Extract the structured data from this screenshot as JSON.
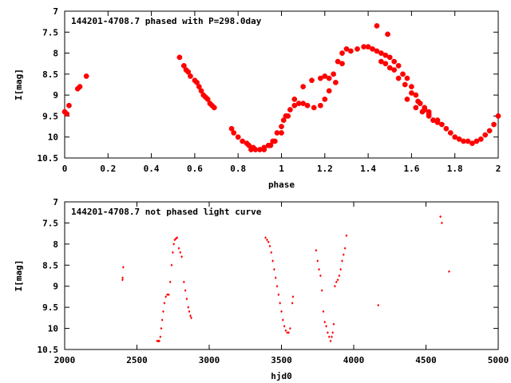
{
  "chart_data": [
    {
      "type": "scatter",
      "title": "144201-4708.7 phased with P=298.0day",
      "xlabel": "phase",
      "ylabel": "I[mag]",
      "xlim": [
        0,
        2
      ],
      "ylim": [
        10.5,
        7
      ],
      "y_inverted": true,
      "xticks": [
        "0",
        "0.2",
        "0.4",
        "0.6",
        "0.8",
        "1",
        "1.2",
        "1.4",
        "1.6",
        "1.8",
        "2"
      ],
      "yticks": [
        "7",
        "7.5",
        "8",
        "8.5",
        "9",
        "9.5",
        "10",
        "10.5"
      ],
      "grid": false,
      "marker_color": "#ff0000",
      "series": [
        {
          "x": [
            0.0,
            0.01,
            0.02,
            0.06,
            0.07,
            0.1,
            0.53,
            0.55,
            0.56,
            0.57,
            0.58,
            0.6,
            0.61,
            0.62,
            0.63,
            0.64,
            0.65,
            0.66,
            0.67,
            0.68,
            0.69,
            0.77,
            0.78,
            0.8,
            0.82,
            0.84,
            0.85,
            0.87,
            0.9,
            0.92,
            0.94,
            0.96,
            0.98,
            1.0,
            1.01,
            1.02,
            1.04,
            1.06,
            1.08,
            1.1,
            1.12,
            1.15,
            1.18,
            1.2,
            1.22,
            1.25,
            1.28,
            0.86,
            0.88,
            0.92,
            0.95,
            0.97,
            1.0,
            1.03,
            1.06,
            1.1,
            1.14,
            1.18,
            1.2,
            1.22,
            1.24,
            1.26,
            1.28,
            1.3,
            1.32,
            1.35,
            1.38,
            1.4,
            1.42,
            1.44,
            1.46,
            1.48,
            1.5,
            1.52,
            1.54,
            1.56,
            1.58,
            1.6,
            1.62,
            1.64,
            1.66,
            1.68,
            1.7,
            1.72,
            1.74,
            1.76,
            1.78,
            1.8,
            1.82,
            1.84,
            1.86,
            1.88,
            1.9,
            1.92,
            1.94,
            1.96,
            1.98,
            2.0,
            1.44,
            1.49,
            1.46,
            1.48,
            1.5,
            1.52,
            1.54,
            1.57,
            1.6,
            1.63,
            1.66,
            1.68,
            1.7,
            1.58,
            1.62,
            1.65,
            1.68,
            1.72
          ],
          "y": [
            9.4,
            9.45,
            9.25,
            8.85,
            8.8,
            8.55,
            8.1,
            8.3,
            8.4,
            8.45,
            8.55,
            8.65,
            8.7,
            8.8,
            8.9,
            9.0,
            9.05,
            9.1,
            9.2,
            9.25,
            9.3,
            9.8,
            9.9,
            10.0,
            10.1,
            10.15,
            10.2,
            10.25,
            10.3,
            10.25,
            10.2,
            10.1,
            9.9,
            9.75,
            9.6,
            9.5,
            9.35,
            9.25,
            9.2,
            9.2,
            9.25,
            9.3,
            9.25,
            9.1,
            8.9,
            8.7,
            8.25,
            10.3,
            10.3,
            10.3,
            10.2,
            10.1,
            9.9,
            9.5,
            9.1,
            8.8,
            8.65,
            8.6,
            8.55,
            8.6,
            8.5,
            8.2,
            8.0,
            7.9,
            7.95,
            7.9,
            7.85,
            7.85,
            7.9,
            7.95,
            8.0,
            8.05,
            8.1,
            8.2,
            8.3,
            8.5,
            8.6,
            8.8,
            9.0,
            9.2,
            9.35,
            9.5,
            9.6,
            9.65,
            9.7,
            9.8,
            9.9,
            10.0,
            10.05,
            10.1,
            10.1,
            10.15,
            10.1,
            10.05,
            9.95,
            9.85,
            9.7,
            9.5,
            7.35,
            7.55,
            8.2,
            8.25,
            8.35,
            8.4,
            8.6,
            8.75,
            8.95,
            9.15,
            9.3,
            9.4,
            9.6,
            9.1,
            9.3,
            9.4,
            9.45,
            9.6
          ]
        }
      ]
    },
    {
      "type": "scatter",
      "title": "144201-4708.7 not phased light curve",
      "xlabel": "hjd0",
      "ylabel": "I[mag]",
      "xlim": [
        2000,
        5000
      ],
      "ylim": [
        10.5,
        7
      ],
      "y_inverted": true,
      "xticks": [
        "2000",
        "2500",
        "3000",
        "3500",
        "4000",
        "4500",
        "5000"
      ],
      "yticks": [
        "7",
        "7.5",
        "8",
        "8.5",
        "9",
        "9.5",
        "10",
        "10.5"
      ],
      "grid": false,
      "marker_color": "#ff0000",
      "series": [
        {
          "x": [
            2400,
            2401,
            2405,
            2640,
            2648,
            2655,
            2662,
            2668,
            2675,
            2682,
            2690,
            2700,
            2710,
            2720,
            2730,
            2740,
            2748,
            2755,
            2762,
            2770,
            2778,
            2790,
            2800,
            2810,
            2825,
            2835,
            2845,
            2855,
            2862,
            2870,
            2876,
            3390,
            3400,
            3410,
            3420,
            3430,
            3440,
            3450,
            3460,
            3470,
            3480,
            3490,
            3500,
            3510,
            3520,
            3530,
            3540,
            3550,
            3560,
            3575,
            3580,
            3740,
            3750,
            3760,
            3770,
            3780,
            3790,
            3800,
            3810,
            3820,
            3830,
            3840,
            3848,
            3855,
            3862,
            3870,
            3880,
            3890,
            3900,
            3910,
            3920,
            3930,
            3940,
            3950,
            4170,
            4600,
            4610,
            4660
          ],
          "y": [
            8.85,
            8.8,
            8.55,
            10.3,
            10.3,
            10.3,
            10.2,
            10.0,
            9.8,
            9.6,
            9.4,
            9.25,
            9.2,
            9.2,
            8.9,
            8.5,
            8.2,
            8.0,
            7.9,
            7.87,
            7.85,
            8.1,
            8.2,
            8.3,
            8.9,
            9.1,
            9.3,
            9.5,
            9.6,
            9.7,
            9.75,
            7.85,
            7.9,
            7.95,
            8.05,
            8.2,
            8.4,
            8.6,
            8.8,
            9.0,
            9.2,
            9.4,
            9.6,
            9.8,
            9.95,
            10.05,
            10.1,
            10.1,
            10.0,
            9.4,
            9.25,
            8.15,
            8.4,
            8.6,
            8.75,
            9.1,
            9.6,
            9.85,
            9.95,
            10.1,
            10.2,
            10.3,
            10.2,
            10.1,
            9.9,
            9.0,
            8.9,
            8.85,
            8.75,
            8.6,
            8.4,
            8.25,
            8.1,
            7.8,
            9.45,
            7.35,
            7.5,
            8.65
          ]
        }
      ]
    }
  ]
}
